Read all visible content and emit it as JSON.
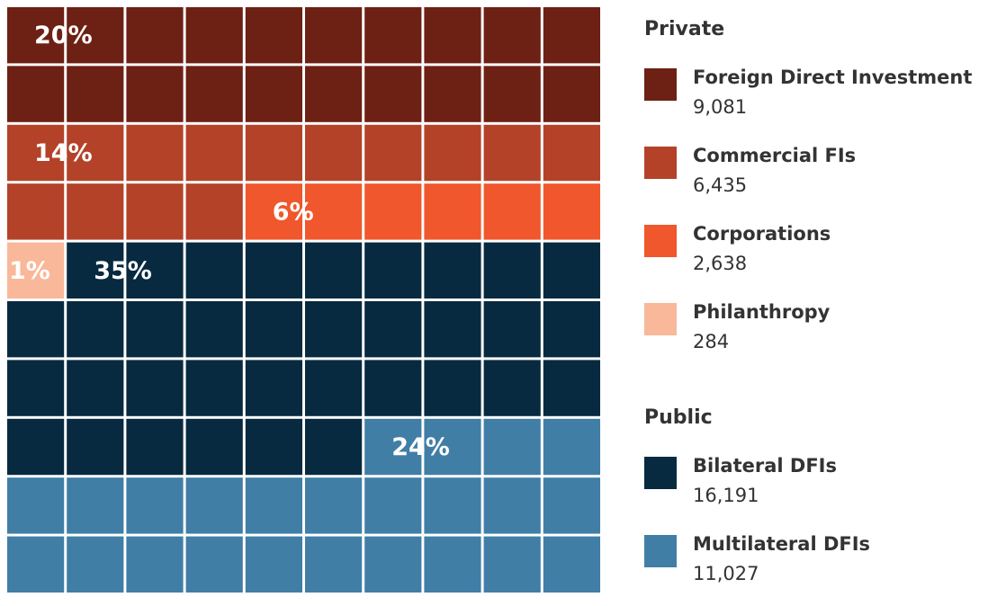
{
  "chart_data": {
    "type": "waffle",
    "rows": 10,
    "columns": 10,
    "groups": [
      {
        "name": "Private",
        "items": [
          {
            "name": "Foreign Direct Investment",
            "color": "#6d2014",
            "value": 9081,
            "value_label": "9,081",
            "share": 20,
            "share_label": "20%"
          },
          {
            "name": "Commercial FIs",
            "color": "#b34229",
            "value": 6435,
            "value_label": "6,435",
            "share": 14,
            "share_label": "14%"
          },
          {
            "name": "Corporations",
            "color": "#f0572c",
            "value": 2638,
            "value_label": "2,638",
            "share": 6,
            "share_label": "6%"
          },
          {
            "name": "Philanthropy",
            "color": "#f9b899",
            "value": 284,
            "value_label": "284",
            "share": 1,
            "share_label": "1%"
          }
        ]
      },
      {
        "name": "Public",
        "items": [
          {
            "name": "Bilateral DFIs",
            "color": "#072a40",
            "value": 16191,
            "value_label": "16,191",
            "share": 35,
            "share_label": "35%"
          },
          {
            "name": "Multilateral DFIs",
            "color": "#417ea6",
            "value": 11027,
            "value_label": "11,027",
            "share": 24,
            "share_label": "24%"
          }
        ]
      }
    ]
  }
}
